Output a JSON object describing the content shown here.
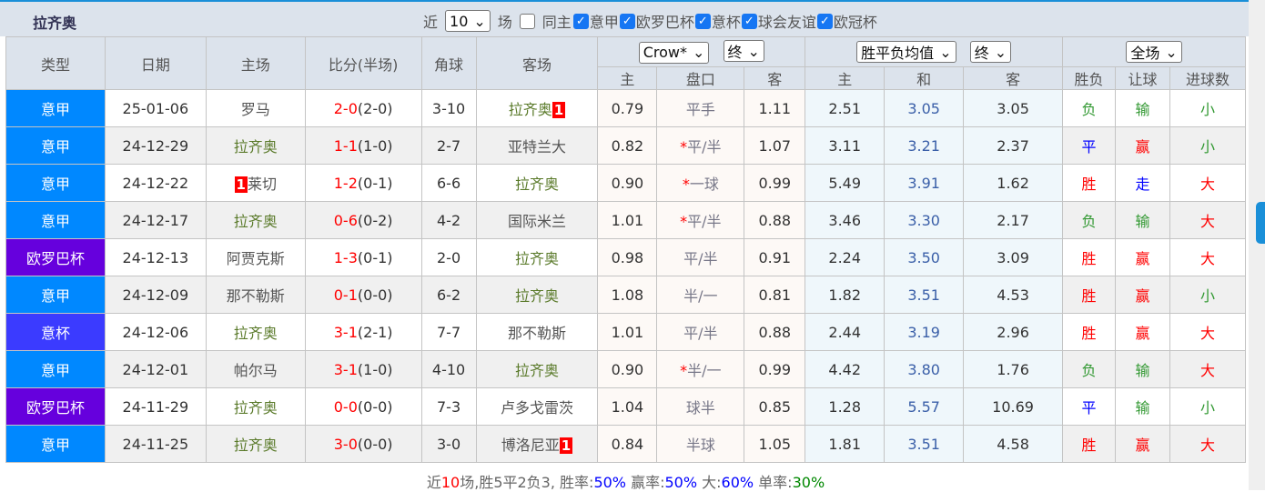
{
  "title": "拉齐奥",
  "filters": {
    "recent_label": "近",
    "count": "10",
    "count_suffix": "场",
    "same_home": "同主",
    "same_home_checked": false,
    "leagues": [
      {
        "label": "意甲",
        "checked": true
      },
      {
        "label": "欧罗巴杯",
        "checked": true
      },
      {
        "label": "意杯",
        "checked": true
      },
      {
        "label": "球会友谊",
        "checked": true
      },
      {
        "label": "欧冠杯",
        "checked": true
      }
    ]
  },
  "headers": {
    "type": "类型",
    "date": "日期",
    "home": "主场",
    "score": "比分(半场)",
    "corner": "角球",
    "away": "客场",
    "ah_company": "Crow*",
    "ah_stage": "终",
    "eu_type": "胜平负均值",
    "eu_stage": "终",
    "period": "全场",
    "sub": [
      "主",
      "盘口",
      "客",
      "主",
      "和",
      "客",
      "胜负",
      "让球",
      "进球数"
    ]
  },
  "colors": {
    "serie_a": "#0088ff",
    "europa": "#6600dd",
    "coppa": "#3b3bff",
    "win": "#ff0000",
    "draw": "#0000ff",
    "loss": "#339933"
  },
  "rows": [
    {
      "type": "意甲",
      "tcolor": "#0088ff",
      "date": "25-01-06",
      "home": "罗马",
      "hrc": "",
      "homeLazio": false,
      "ft": "2-0",
      "ht": "(2-0)",
      "corner": "3-10",
      "away": "拉齐奥",
      "arc": "1",
      "awayLazio": true,
      "a1": "0.79",
      "hc": "平手",
      "star": "",
      "a2": "1.11",
      "e1": "2.51",
      "e2": "3.05",
      "e3": "3.05",
      "r": "负",
      "rc": "green",
      "p": "输",
      "pc": "green",
      "g": "小",
      "gc": "green"
    },
    {
      "type": "意甲",
      "tcolor": "#0088ff",
      "date": "24-12-29",
      "home": "拉齐奥",
      "hrc": "",
      "homeLazio": true,
      "ft": "1-1",
      "ht": "(1-0)",
      "corner": "2-7",
      "away": "亚特兰大",
      "arc": "",
      "awayLazio": false,
      "a1": "0.82",
      "hc": "平/半",
      "star": "*",
      "a2": "1.07",
      "e1": "3.11",
      "e2": "3.21",
      "e3": "2.37",
      "r": "平",
      "rc": "blue",
      "p": "赢",
      "pc": "red",
      "g": "小",
      "gc": "green"
    },
    {
      "type": "意甲",
      "tcolor": "#0088ff",
      "date": "24-12-22",
      "home": "莱切",
      "hrc": "1",
      "homeLazio": false,
      "ft": "1-2",
      "ht": "(0-1)",
      "corner": "6-6",
      "away": "拉齐奥",
      "arc": "",
      "awayLazio": true,
      "a1": "0.90",
      "hc": "一球",
      "star": "*",
      "a2": "0.99",
      "e1": "5.49",
      "e2": "3.91",
      "e3": "1.62",
      "r": "胜",
      "rc": "red",
      "p": "走",
      "pc": "blue",
      "g": "大",
      "gc": "red"
    },
    {
      "type": "意甲",
      "tcolor": "#0088ff",
      "date": "24-12-17",
      "home": "拉齐奥",
      "hrc": "",
      "homeLazio": true,
      "ft": "0-6",
      "ht": "(0-2)",
      "corner": "4-2",
      "away": "国际米兰",
      "arc": "",
      "awayLazio": false,
      "a1": "1.01",
      "hc": "平/半",
      "star": "*",
      "a2": "0.88",
      "e1": "3.46",
      "e2": "3.30",
      "e3": "2.17",
      "r": "负",
      "rc": "green",
      "p": "输",
      "pc": "green",
      "g": "大",
      "gc": "red"
    },
    {
      "type": "欧罗巴杯",
      "tcolor": "#6600dd",
      "date": "24-12-13",
      "home": "阿贾克斯",
      "hrc": "",
      "homeLazio": false,
      "ft": "1-3",
      "ht": "(0-1)",
      "corner": "2-0",
      "away": "拉齐奥",
      "arc": "",
      "awayLazio": true,
      "a1": "0.98",
      "hc": "平/半",
      "star": "",
      "a2": "0.91",
      "e1": "2.24",
      "e2": "3.50",
      "e3": "3.09",
      "r": "胜",
      "rc": "red",
      "p": "赢",
      "pc": "red",
      "g": "大",
      "gc": "red"
    },
    {
      "type": "意甲",
      "tcolor": "#0088ff",
      "date": "24-12-09",
      "home": "那不勒斯",
      "hrc": "",
      "homeLazio": false,
      "ft": "0-1",
      "ht": "(0-0)",
      "corner": "6-2",
      "away": "拉齐奥",
      "arc": "",
      "awayLazio": true,
      "a1": "1.08",
      "hc": "半/一",
      "star": "",
      "a2": "0.81",
      "e1": "1.82",
      "e2": "3.51",
      "e3": "4.53",
      "r": "胜",
      "rc": "red",
      "p": "赢",
      "pc": "red",
      "g": "小",
      "gc": "green"
    },
    {
      "type": "意杯",
      "tcolor": "#3b3bff",
      "date": "24-12-06",
      "home": "拉齐奥",
      "hrc": "",
      "homeLazio": true,
      "ft": "3-1",
      "ht": "(2-1)",
      "corner": "7-7",
      "away": "那不勒斯",
      "arc": "",
      "awayLazio": false,
      "a1": "1.01",
      "hc": "平/半",
      "star": "",
      "a2": "0.88",
      "e1": "2.44",
      "e2": "3.19",
      "e3": "2.96",
      "r": "胜",
      "rc": "red",
      "p": "赢",
      "pc": "red",
      "g": "大",
      "gc": "red"
    },
    {
      "type": "意甲",
      "tcolor": "#0088ff",
      "date": "24-12-01",
      "home": "帕尔马",
      "hrc": "",
      "homeLazio": false,
      "ft": "3-1",
      "ht": "(1-0)",
      "corner": "4-10",
      "away": "拉齐奥",
      "arc": "",
      "awayLazio": true,
      "a1": "0.90",
      "hc": "半/一",
      "star": "*",
      "a2": "0.99",
      "e1": "4.42",
      "e2": "3.80",
      "e3": "1.76",
      "r": "负",
      "rc": "green",
      "p": "输",
      "pc": "green",
      "g": "大",
      "gc": "red"
    },
    {
      "type": "欧罗巴杯",
      "tcolor": "#6600dd",
      "date": "24-11-29",
      "home": "拉齐奥",
      "hrc": "",
      "homeLazio": true,
      "ft": "0-0",
      "ht": "(0-0)",
      "corner": "7-3",
      "away": "卢多戈雷茨",
      "arc": "",
      "awayLazio": false,
      "a1": "1.04",
      "hc": "球半",
      "star": "",
      "a2": "0.85",
      "e1": "1.28",
      "e2": "5.57",
      "e3": "10.69",
      "r": "平",
      "rc": "blue",
      "p": "输",
      "pc": "green",
      "g": "小",
      "gc": "green"
    },
    {
      "type": "意甲",
      "tcolor": "#0088ff",
      "date": "24-11-25",
      "home": "拉齐奥",
      "hrc": "",
      "homeLazio": true,
      "ft": "3-0",
      "ht": "(0-0)",
      "corner": "3-0",
      "away": "博洛尼亚",
      "arc": "1",
      "awayLazio": false,
      "a1": "0.84",
      "hc": "半球",
      "star": "",
      "a2": "1.05",
      "e1": "1.81",
      "e2": "3.51",
      "e3": "4.58",
      "r": "胜",
      "rc": "red",
      "p": "赢",
      "pc": "red",
      "g": "大",
      "gc": "red"
    }
  ],
  "summary": {
    "p1": "近",
    "n": "10",
    "p2": "场,胜5平2负3, 胜率:",
    "win": "50%",
    "p3": " 赢率:",
    "cover": "50%",
    "p4": " 大:",
    "over": "60%",
    "p5": " 单率:",
    "odd": "30%"
  }
}
